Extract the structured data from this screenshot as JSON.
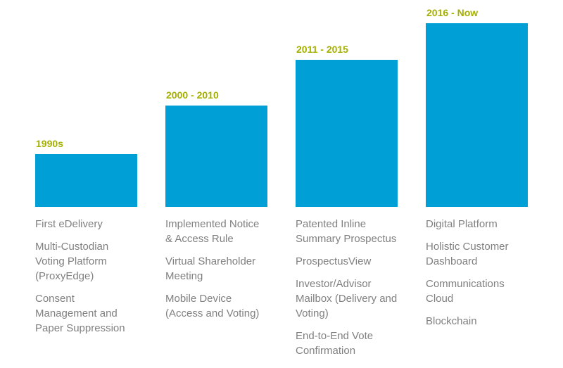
{
  "chart_data": {
    "type": "bar",
    "title": "",
    "xlabel": "",
    "ylabel": "",
    "legend": "none",
    "grid": false,
    "categories": [
      "1990s",
      "2000 - 2010",
      "2011 - 2015",
      "2016 - Now"
    ],
    "values": [
      75,
      144,
      209,
      261
    ],
    "value_note": "relative bar heights in px; no numeric axis shown, bars ascend left to right to a shared baseline",
    "annotations": [
      "First eDelivery",
      "Multi-Custodian Voting Platform (ProxyEdge)",
      "Consent Management and Paper Suppression",
      "Implemented Notice & Access Rule",
      "Virtual Shareholder Meeting",
      "Mobile Device (Access and Voting)",
      "Patented Inline Summary Prospectus",
      "ProspectusView",
      "Investor/Advisor Mailbox (Delivery and Voting)",
      "End-to-End Vote Confirmation",
      "Digital Platform",
      "Holistic Customer Dashboard",
      "Communications Cloud",
      "Blockchain"
    ]
  },
  "colors": {
    "bar": "#009FD6",
    "era_label": "#A4AF00",
    "item_text": "#808080",
    "background": "#FFFFFF"
  },
  "columns": [
    {
      "era": "1990s",
      "items": [
        "First eDelivery",
        "Multi-Custodian\nVoting Platform\n(ProxyEdge)",
        "Consent\nManagement and\nPaper Suppression"
      ]
    },
    {
      "era": "2000 - 2010",
      "items": [
        "Implemented Notice\n& Access Rule",
        "Virtual Shareholder\nMeeting",
        "Mobile Device\n(Access and Voting)"
      ]
    },
    {
      "era": "2011 - 2015",
      "items": [
        "Patented Inline\nSummary Prospectus",
        "ProspectusView",
        "Investor/Advisor\nMailbox (Delivery and\nVoting)",
        "End-to-End Vote\nConfirmation"
      ]
    },
    {
      "era": "2016 - Now",
      "items": [
        "Digital Platform",
        "Holistic Customer\nDashboard",
        "Communications\nCloud",
        "Blockchain"
      ]
    }
  ]
}
